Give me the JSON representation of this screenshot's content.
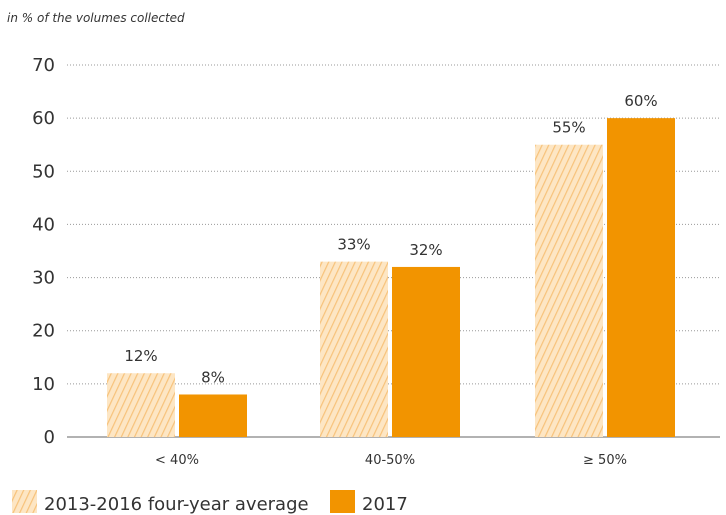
{
  "chart_data": {
    "type": "bar",
    "unit_label": "in % of the volumes collected",
    "categories": [
      "< 40%",
      "40-50%",
      "≥ 50%"
    ],
    "series": [
      {
        "name": "2013-2016 four-year average",
        "values": [
          12,
          33,
          55
        ],
        "labels": [
          "12%",
          "33%",
          "55%"
        ],
        "style": "hatched"
      },
      {
        "name": "2017",
        "values": [
          8,
          32,
          60
        ],
        "labels": [
          "8%",
          "32%",
          "60%"
        ],
        "style": "solid"
      }
    ],
    "ylim": [
      0,
      70
    ],
    "yticks": [
      0,
      10,
      20,
      30,
      40,
      50,
      60,
      70
    ],
    "grid": "dotted horizontal",
    "legend_position": "bottom-left"
  },
  "colors": {
    "accent": "#f29400",
    "hatch_bg": "#fde6c4",
    "hatch_line": "#f7c27a",
    "axis": "#666666",
    "grid": "#999999"
  }
}
